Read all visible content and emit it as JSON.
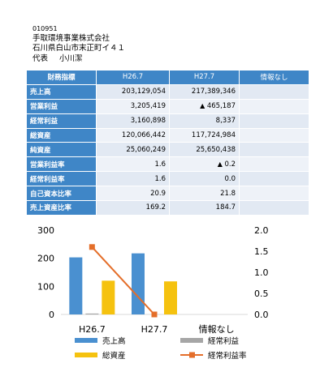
{
  "company": {
    "code": "010951",
    "name": "手取環境事業株式会社",
    "address": "石川県白山市末正町イ４１",
    "rep_role": "代表",
    "rep_name": "小川潔"
  },
  "table": {
    "headers": [
      "財務指標",
      "H26.7",
      "H27.7",
      "情報なし"
    ],
    "rows": [
      {
        "label": "売上高",
        "v1": "203,129,054",
        "v2": "217,389,346",
        "v2_neg": false
      },
      {
        "label": "営業利益",
        "v1": "3,205,419",
        "v2": "465,187",
        "v2_neg": true
      },
      {
        "label": "経常利益",
        "v1": "3,160,898",
        "v2": "8,337",
        "v2_neg": false
      },
      {
        "label": "総資産",
        "v1": "120,066,442",
        "v2": "117,724,984",
        "v2_neg": false
      },
      {
        "label": "純資産",
        "v1": "25,060,249",
        "v2": "25,650,438",
        "v2_neg": false
      },
      {
        "label": "営業利益率",
        "v1": "1.6",
        "v2": "0.2",
        "v2_neg": true
      },
      {
        "label": "経常利益率",
        "v1": "1.6",
        "v2": "0.0",
        "v2_neg": false
      },
      {
        "label": "自己資本比率",
        "v1": "20.9",
        "v2": "21.8",
        "v2_neg": false
      },
      {
        "label": "売上資産比率",
        "v1": "169.2",
        "v2": "184.7",
        "v2_neg": false
      }
    ]
  },
  "chart_data": {
    "type": "bar",
    "categories": [
      "H26.7",
      "H27.7",
      "情報なし"
    ],
    "y_left": {
      "min": 0,
      "max": 300,
      "ticks": [
        "0",
        "100",
        "200",
        "300"
      ]
    },
    "y_right": {
      "min": 0,
      "max": 2.0,
      "ticks": [
        "0.0",
        "0.5",
        "1.0",
        "1.5",
        "2.0"
      ]
    },
    "series": [
      {
        "name": "売上高",
        "kind": "bar",
        "axis": "left",
        "color": "#4a90d0",
        "values": [
          203.1,
          217.4,
          null
        ]
      },
      {
        "name": "経常利益",
        "kind": "bar",
        "axis": "left",
        "color": "#a6a6a6",
        "values": [
          3.2,
          0.0,
          null
        ]
      },
      {
        "name": "総資産",
        "kind": "bar",
        "axis": "left",
        "color": "#f5c20f",
        "values": [
          120.1,
          117.7,
          null
        ]
      },
      {
        "name": "経常利益率",
        "kind": "line",
        "axis": "right",
        "color": "#e46e2a",
        "values": [
          1.6,
          0.0,
          null
        ]
      }
    ],
    "legend_position": "bottom",
    "grid": false
  }
}
